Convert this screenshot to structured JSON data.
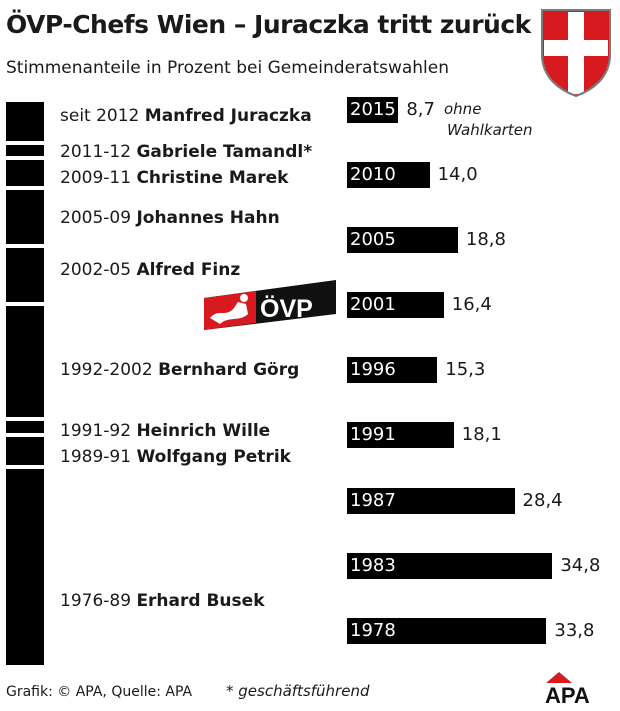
{
  "header": {
    "title": "ÖVP-Chefs Wien – Juraczka tritt zurück",
    "subtitle": "Stimmenanteile in Prozent bei Gemeinderatswahlen"
  },
  "chiefs": [
    {
      "period": "seit 2012",
      "name": "Manfred Juraczka"
    },
    {
      "period": "2011-12",
      "name": "Gabriele Tamandl*"
    },
    {
      "period": "2009-11",
      "name": "Christine Marek"
    },
    {
      "period": "2005-09",
      "name": "Johannes Hahn"
    },
    {
      "period": "2002-05",
      "name": "Alfred Finz"
    },
    {
      "period": "1992-2002",
      "name": "Bernhard Görg"
    },
    {
      "period": "1991-92",
      "name": "Heinrich Wille"
    },
    {
      "period": "1989-91",
      "name": "Wolfgang Petrik"
    },
    {
      "period": "1976-89",
      "name": "Erhard Busek"
    }
  ],
  "chart_data": {
    "type": "bar",
    "orientation": "horizontal",
    "title": "ÖVP-Chefs Wien – Juraczka tritt zurück",
    "subtitle": "Stimmenanteile in Prozent bei Gemeinderatswahlen",
    "categories": [
      "2015",
      "2010",
      "2005",
      "2001",
      "1996",
      "1991",
      "1987",
      "1983",
      "1978"
    ],
    "values": [
      8.7,
      14.0,
      18.8,
      16.4,
      15.3,
      18.1,
      28.4,
      34.8,
      33.8
    ],
    "value_labels": [
      "8,7",
      "14,0",
      "18,8",
      "16,4",
      "15,3",
      "18,1",
      "28,4",
      "34,8",
      "33,8"
    ],
    "annotations": [
      {
        "category": "2015",
        "text": "ohne Wahlkarten"
      }
    ],
    "grid": false,
    "legend": "none"
  },
  "logo": {
    "text": "ÖVP",
    "color": "#d71920"
  },
  "crest": {
    "color": "#d71920"
  },
  "footer": {
    "source": "Grafik: © APA, Quelle: APA",
    "footnote": "* geschäftsführend",
    "brand": "APA",
    "brand_color": "#d71920"
  }
}
